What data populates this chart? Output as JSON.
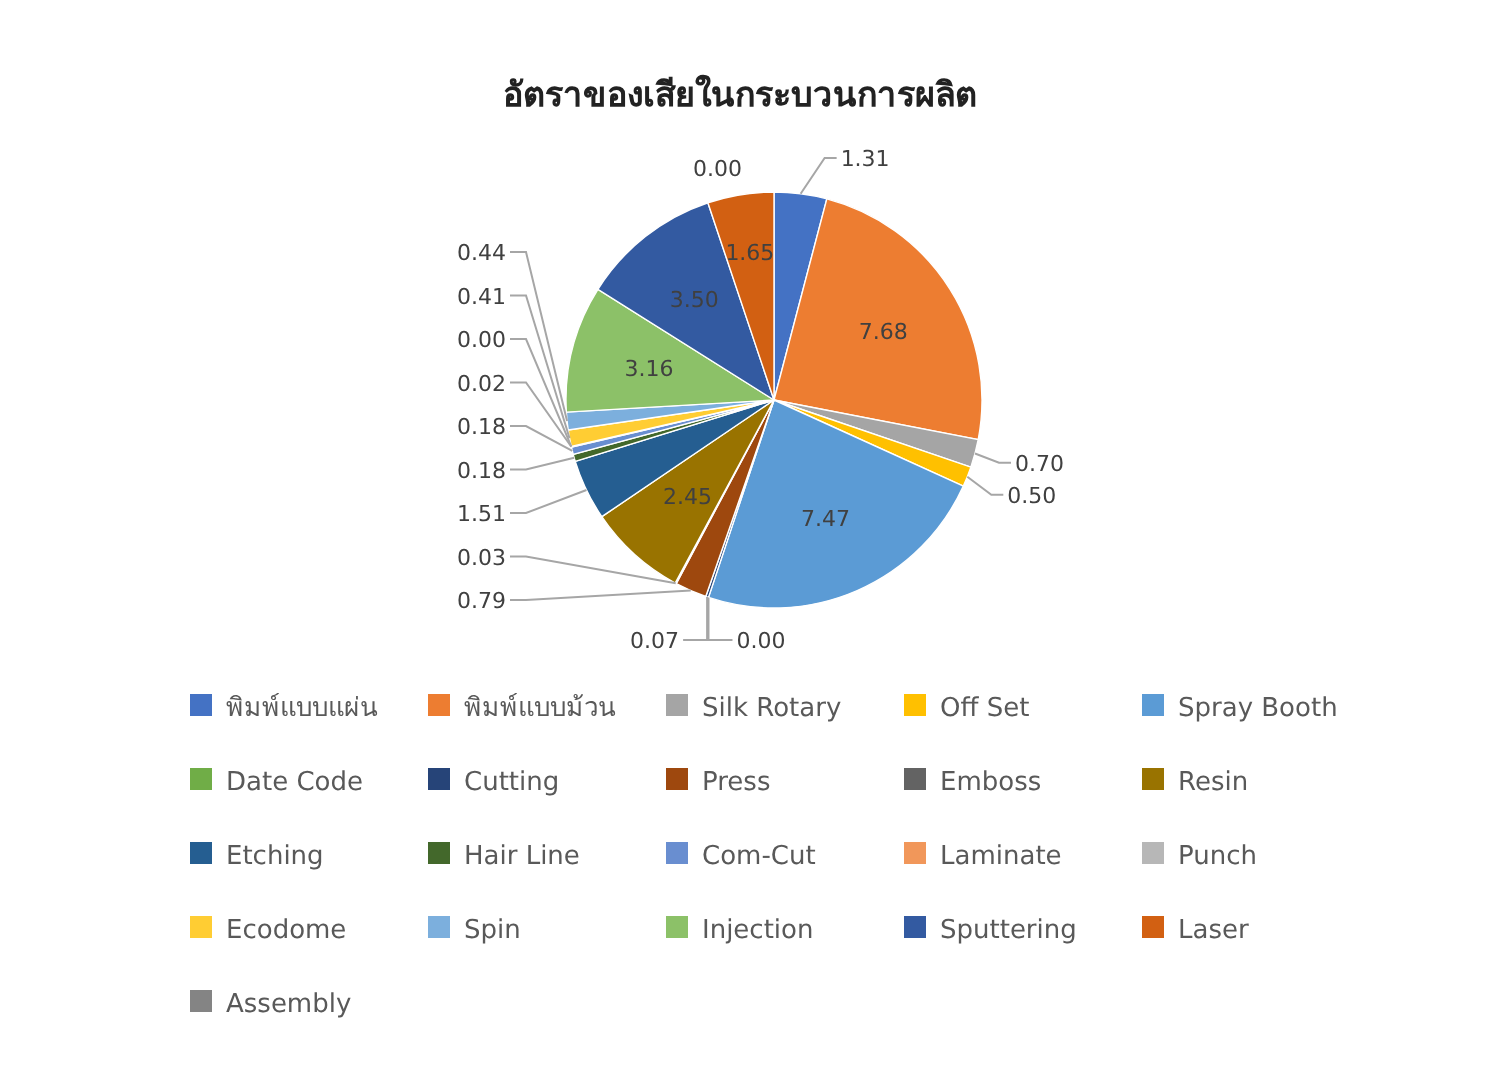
{
  "chart_data": {
    "type": "pie",
    "title": "อัตราของเสียในกระบวนการผลิต",
    "categories": [
      "พิมพ์แบบแผ่น",
      "พิมพ์แบบม้วน",
      "Silk Rotary",
      "Off Set",
      "Spray Booth",
      "Date Code",
      "Cutting",
      "Press",
      "Emboss",
      "Resin",
      "Etching",
      "Hair Line",
      "Com-Cut",
      "Laminate",
      "Punch",
      "Ecodome",
      "Spin",
      "Injection",
      "Sputtering",
      "Laser",
      "Assembly"
    ],
    "values": [
      1.31,
      7.68,
      0.7,
      0.5,
      7.47,
      0.0,
      0.07,
      0.79,
      0.03,
      2.45,
      1.51,
      0.18,
      0.18,
      0.02,
      0.0,
      0.41,
      0.44,
      3.16,
      3.5,
      1.65,
      0.0
    ],
    "value_labels": [
      "1.31",
      "7.68",
      "0.70",
      "0.50",
      "7.47",
      "0.00",
      "0.07",
      "0.79",
      "0.03",
      "2.45",
      "1.51",
      "0.18",
      "0.18",
      "0.02",
      "0.00",
      "0.41",
      "0.44",
      "3.16",
      "3.50",
      "1.65",
      "0.00"
    ],
    "colors": [
      "#4472c4",
      "#ed7d31",
      "#a5a5a5",
      "#ffc000",
      "#5b9bd5",
      "#70ad47",
      "#264478",
      "#9e480e",
      "#636363",
      "#997300",
      "#255e91",
      "#43682b",
      "#698ed0",
      "#f1975a",
      "#b7b7b7",
      "#ffcd33",
      "#7cafdd",
      "#8cc168",
      "#335aa1",
      "#d26012",
      "#848484"
    ],
    "legend": "bottom"
  }
}
